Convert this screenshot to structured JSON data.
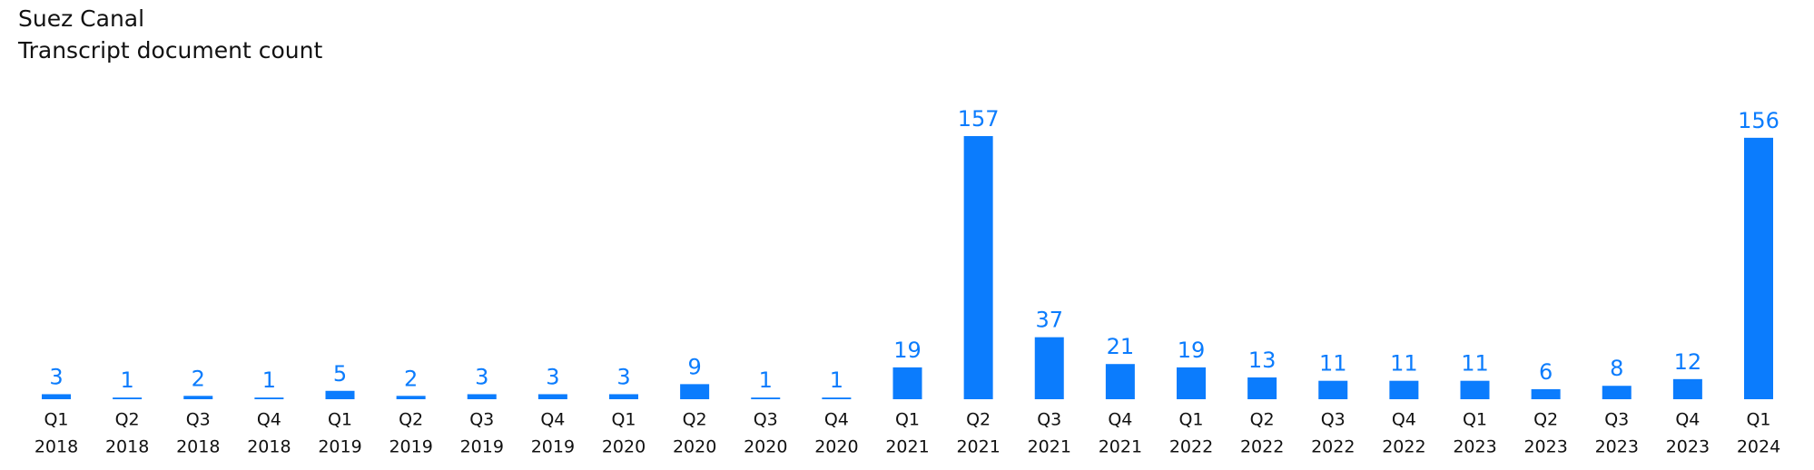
{
  "chart_data": {
    "type": "bar",
    "title": "Suez Canal",
    "subtitle": "Transcript document count",
    "categories": [
      [
        "Q1",
        "2018"
      ],
      [
        "Q2",
        "2018"
      ],
      [
        "Q3",
        "2018"
      ],
      [
        "Q4",
        "2018"
      ],
      [
        "Q1",
        "2019"
      ],
      [
        "Q2",
        "2019"
      ],
      [
        "Q3",
        "2019"
      ],
      [
        "Q4",
        "2019"
      ],
      [
        "Q1",
        "2020"
      ],
      [
        "Q2",
        "2020"
      ],
      [
        "Q3",
        "2020"
      ],
      [
        "Q4",
        "2020"
      ],
      [
        "Q1",
        "2021"
      ],
      [
        "Q2",
        "2021"
      ],
      [
        "Q3",
        "2021"
      ],
      [
        "Q4",
        "2021"
      ],
      [
        "Q1",
        "2022"
      ],
      [
        "Q2",
        "2022"
      ],
      [
        "Q3",
        "2022"
      ],
      [
        "Q4",
        "2022"
      ],
      [
        "Q1",
        "2023"
      ],
      [
        "Q2",
        "2023"
      ],
      [
        "Q3",
        "2023"
      ],
      [
        "Q4",
        "2023"
      ],
      [
        "Q1",
        "2024"
      ]
    ],
    "values": [
      3,
      1,
      2,
      1,
      5,
      2,
      3,
      3,
      3,
      9,
      1,
      1,
      19,
      157,
      37,
      21,
      19,
      13,
      11,
      11,
      11,
      6,
      8,
      12,
      156
    ],
    "color": "#0b7cfd"
  }
}
